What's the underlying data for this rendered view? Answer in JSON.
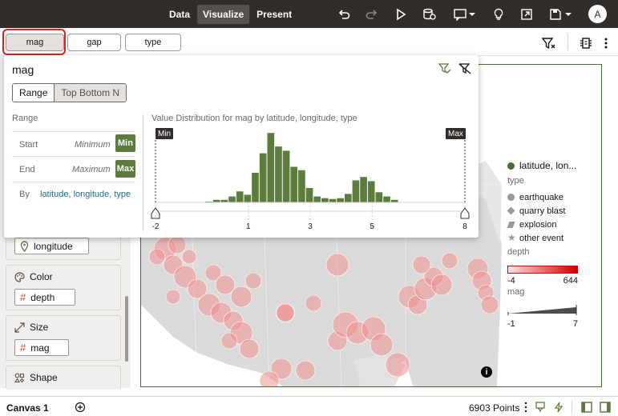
{
  "top_bar": {
    "modes": [
      {
        "label": "Data",
        "active": false
      },
      {
        "label": "Visualize",
        "active": true
      },
      {
        "label": "Present",
        "active": false
      }
    ],
    "avatar_initial": "A",
    "icons": [
      "undo-icon",
      "redo-icon",
      "run-icon",
      "data-actions-icon",
      "comment-icon",
      "insight-icon",
      "preview-icon",
      "save-icon"
    ]
  },
  "filter_bar": {
    "chips": [
      {
        "label": "mag",
        "selected": true
      },
      {
        "label": "gap",
        "selected": false
      },
      {
        "label": "type",
        "selected": false
      }
    ],
    "icons": [
      "filter-settings-icon",
      "properties-icon",
      "more-icon"
    ]
  },
  "grammar": {
    "longitude_label": "longitude",
    "color": {
      "title": "Color",
      "value": "depth"
    },
    "size": {
      "title": "Size",
      "value": "mag"
    },
    "shape": {
      "title": "Shape"
    }
  },
  "filter_popover": {
    "title": "mag",
    "tabs": [
      {
        "label": "Range",
        "active": true
      },
      {
        "label": "Top Bottom N",
        "active": false
      }
    ],
    "section_label": "Range",
    "start": {
      "label": "Start",
      "placeholder": "Minimum",
      "button": "Min"
    },
    "end": {
      "label": "End",
      "placeholder": "Maximum",
      "button": "Max"
    },
    "by": {
      "label": "By",
      "value": "latitude, longitude, type"
    },
    "chart_title": "Value Distribution for mag by latitude, longitude, type",
    "min_flag": "Min",
    "max_flag": "Max",
    "bar_color": "#5b7c3c"
  },
  "chart_data": {
    "type": "bar",
    "title": "Value Distribution for mag by latitude, longitude, type",
    "x_ticks": [
      "-2",
      "1",
      "3",
      "5",
      "8"
    ],
    "xlim": [
      -2,
      8
    ],
    "bin_start": -0.4,
    "bin_width": 0.25,
    "values": [
      1,
      3,
      3,
      7,
      13,
      9,
      35,
      58,
      82,
      66,
      61,
      42,
      38,
      17,
      7,
      5,
      4,
      5,
      10,
      26,
      30,
      25,
      12,
      7,
      3
    ],
    "ymax": 85
  },
  "legend": {
    "series_label": "latitude, lon...",
    "type_title": "type",
    "types": [
      {
        "label": "earthquake",
        "shape": "circle"
      },
      {
        "label": "quarry blast",
        "shape": "diamond"
      },
      {
        "label": "explosion",
        "shape": "parallelogram"
      },
      {
        "label": "other event",
        "shape": "star"
      }
    ],
    "depth_title": "depth",
    "depth_min": "-4",
    "depth_max": "644",
    "mag_title": "mag",
    "mag_min": "-1",
    "mag_max": "7",
    "depth_gradient": [
      "#fde4e4",
      "#cc0000"
    ]
  },
  "bottom_bar": {
    "canvas_tab": "Canvas 1",
    "points": "6903 Points"
  }
}
